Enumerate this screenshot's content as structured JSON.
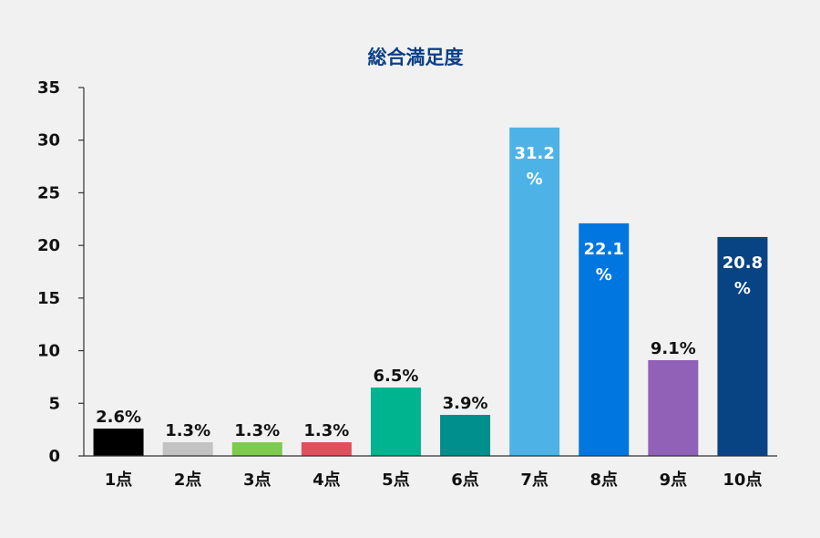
{
  "chart_data": {
    "type": "bar",
    "title": "総合満足度",
    "categories": [
      "1点",
      "2点",
      "3点",
      "4点",
      "5点",
      "6点",
      "7点",
      "8点",
      "9点",
      "10点"
    ],
    "values": [
      2.6,
      1.3,
      1.3,
      1.3,
      6.5,
      3.9,
      31.2,
      22.1,
      9.1,
      20.8
    ],
    "value_labels": [
      "2.6%",
      "1.3%",
      "1.3%",
      "1.3%",
      "6.5%",
      "3.9%",
      "31.2%",
      "22.1%",
      "9.1%",
      "20.8%"
    ],
    "colors": [
      "#000000",
      "#c2c2c2",
      "#7ccb4d",
      "#e0505c",
      "#00b48f",
      "#008f8c",
      "#4db3e6",
      "#0076e0",
      "#9061b7",
      "#084384"
    ],
    "ylim": [
      0,
      35
    ],
    "yticks": [
      0,
      5,
      10,
      15,
      20,
      25,
      30,
      35
    ],
    "xlabel": "",
    "ylabel": "",
    "grid": false,
    "legend": "none",
    "label_inside_threshold": 20
  }
}
